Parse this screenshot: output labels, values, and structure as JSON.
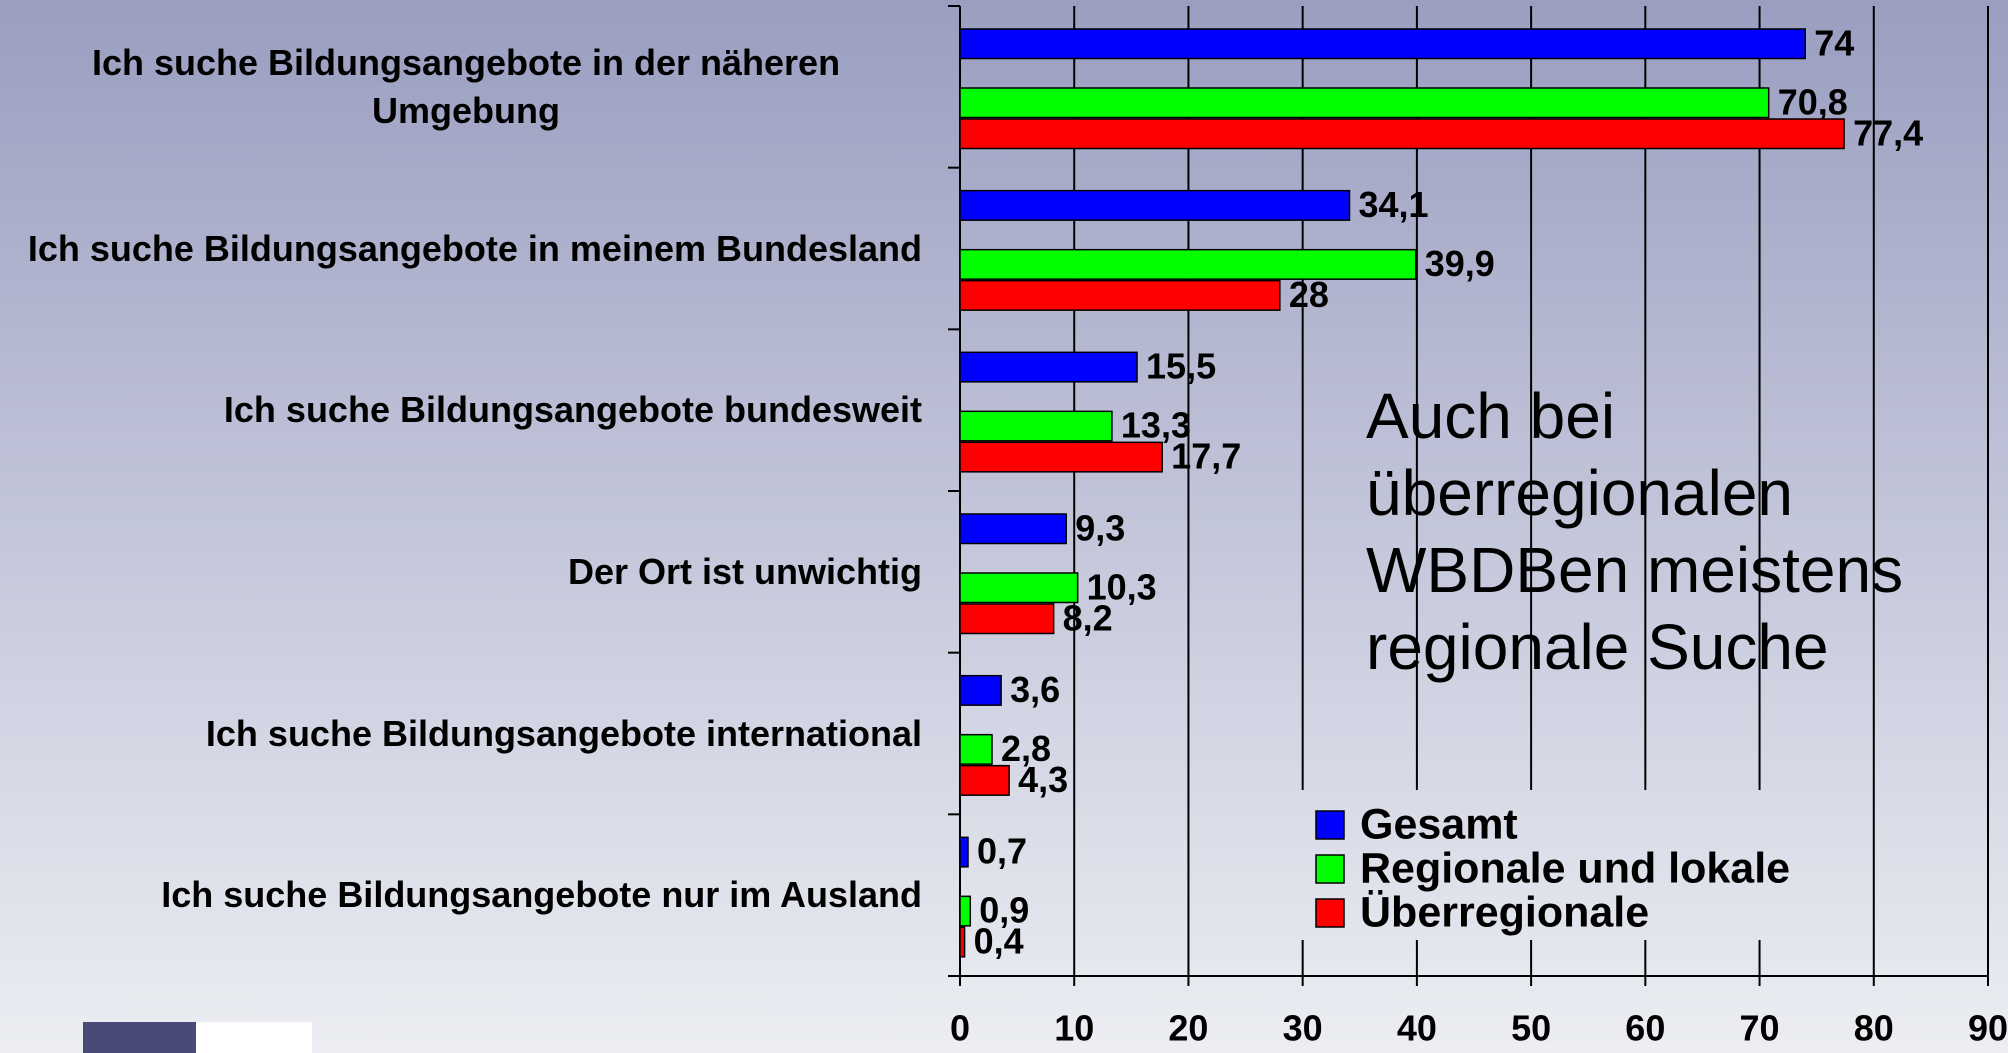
{
  "chart_data": {
    "type": "barh",
    "categories": [
      "Ich suche Bildungsangebote in der näheren Umgebung",
      "Ich suche Bildungsangebote in meinem Bundesland",
      "Ich suche Bildungsangebote bundesweit",
      "Der Ort ist unwichtig",
      "Ich suche Bildungsangebote international",
      "Ich suche Bildungsangebote nur im Ausland"
    ],
    "series": [
      {
        "name": "Gesamt",
        "color": "#0000ff",
        "values": [
          74,
          34.1,
          15.5,
          9.3,
          3.6,
          0.7
        ],
        "value_labels": [
          "74",
          "34,1",
          "15,5",
          "9,3",
          "3,6",
          "0,7"
        ]
      },
      {
        "name": "Regionale und lokale",
        "color": "#00ff00",
        "values": [
          70.8,
          39.9,
          13.3,
          10.3,
          2.8,
          0.9
        ],
        "value_labels": [
          "70,8",
          "39,9",
          "13,3",
          "10,3",
          "2,8",
          "0,9"
        ]
      },
      {
        "name": "Überregionale",
        "color": "#ff0000",
        "values": [
          77.4,
          28,
          17.7,
          8.2,
          4.3,
          0.4
        ],
        "value_labels": [
          "77,4",
          "28",
          "17,7",
          "8,2",
          "4,3",
          "0,4"
        ]
      }
    ],
    "xlim": [
      0,
      90
    ],
    "xticks": [
      0,
      10,
      20,
      30,
      40,
      50,
      60,
      70,
      80,
      90
    ],
    "grid": true,
    "annotation": "Auch bei überregionalen WBDBen meistens regionale Suche"
  }
}
